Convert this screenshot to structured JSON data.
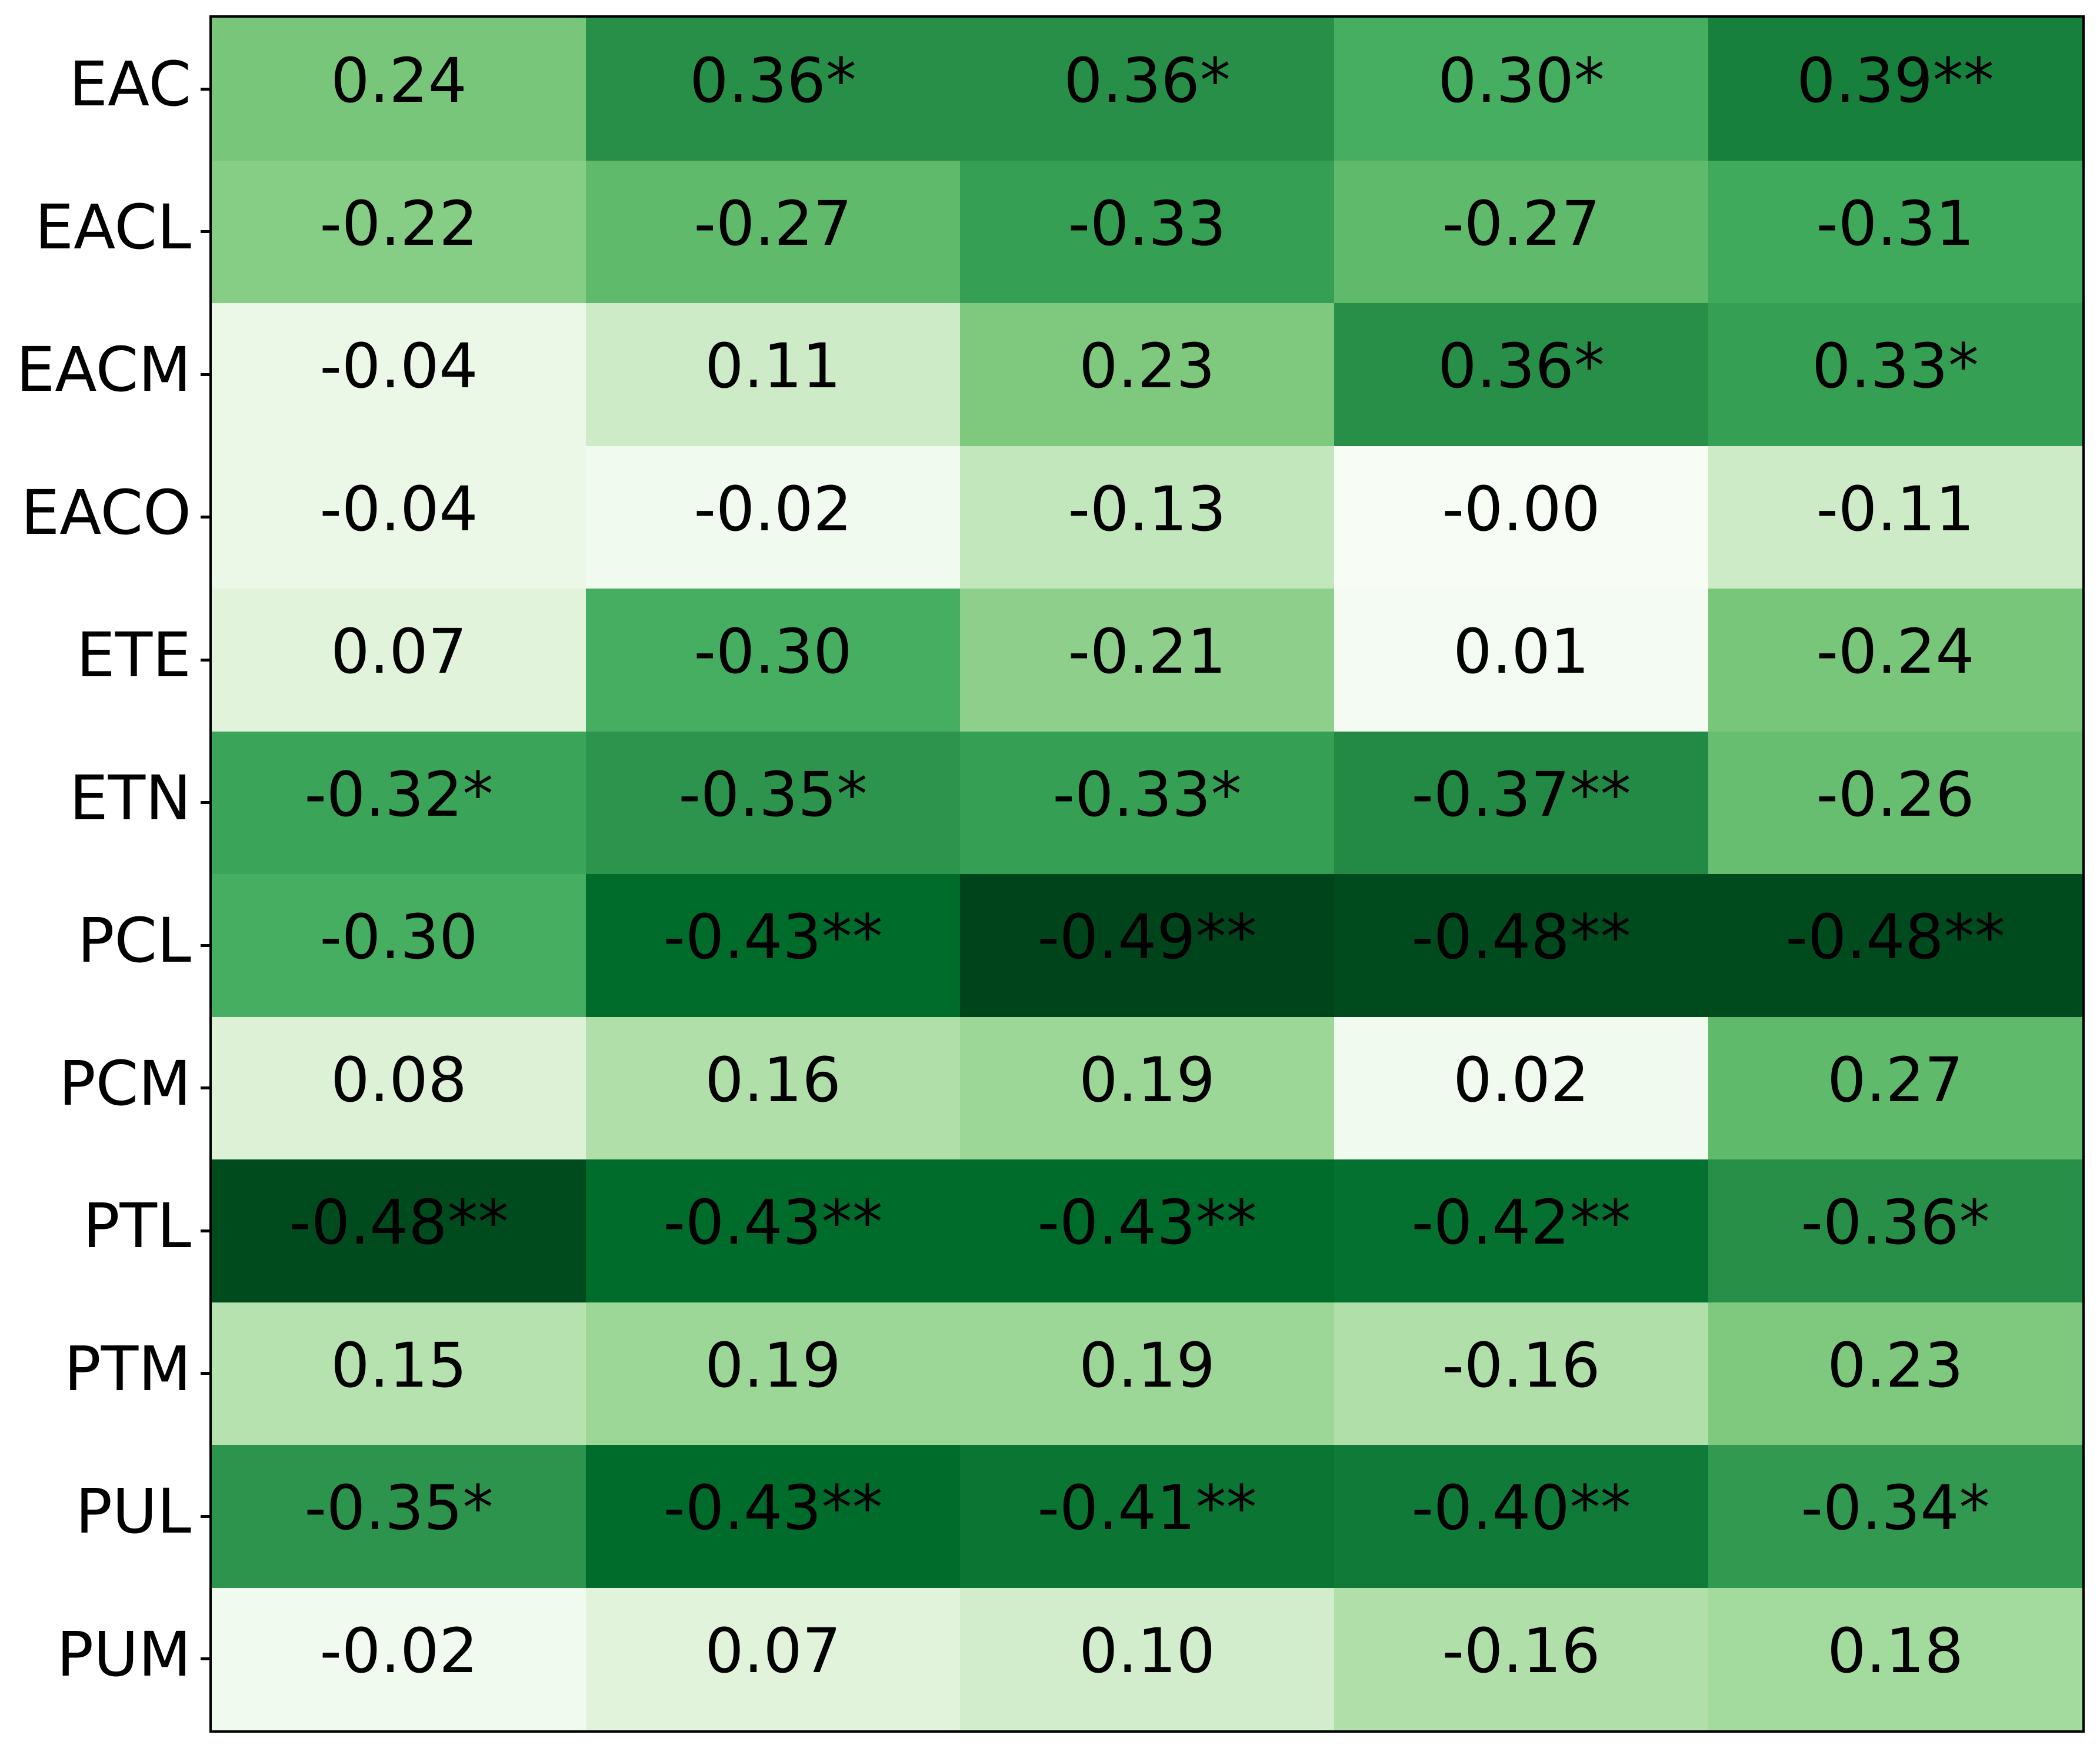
{
  "chart_data": {
    "type": "heatmap",
    "title": "",
    "xlabel": "",
    "ylabel": "",
    "n_rows": 12,
    "n_cols": 5,
    "row_labels": [
      "EAC",
      "EACL",
      "EACM",
      "EACO",
      "ETE",
      "ETN",
      "PCL",
      "PCM",
      "PTL",
      "PTM",
      "PUL",
      "PUM"
    ],
    "column_labels": [],
    "colormap": "Greens",
    "color_encodes": "absolute value of correlation",
    "abs_value_range": [
      0.0,
      0.49
    ],
    "annotation_note": "* and ** suffixes as shown in cells",
    "rows": [
      {
        "label": "EAC",
        "labels": [
          "0.24",
          "0.36*",
          "0.36*",
          "0.30*",
          "0.39**"
        ],
        "values": [
          0.24,
          0.36,
          0.36,
          0.3,
          0.39
        ],
        "colors": [
          "#78c679",
          "#278f48",
          "#278f48",
          "#46ae60",
          "#16803c"
        ]
      },
      {
        "label": "EACL",
        "labels": [
          "-0.22",
          "-0.27",
          "-0.33",
          "-0.27",
          "-0.31"
        ],
        "values": [
          -0.22,
          -0.27,
          -0.33,
          -0.27,
          -0.31
        ],
        "colors": [
          "#86cd85",
          "#5fba6c",
          "#359f54",
          "#5fba6c",
          "#3fa95c"
        ]
      },
      {
        "label": "EACM",
        "labels": [
          "-0.04",
          "0.11",
          "0.23",
          "0.36*",
          "0.33*"
        ],
        "values": [
          -0.04,
          0.11,
          0.23,
          0.36,
          0.33
        ],
        "colors": [
          "#ebf7e7",
          "#cdebc7",
          "#7fc97f",
          "#278f48",
          "#359f54"
        ]
      },
      {
        "label": "EACO",
        "labels": [
          "-0.04",
          "-0.02",
          "-0.13",
          "-0.00",
          "-0.11"
        ],
        "values": [
          -0.04,
          -0.02,
          -0.13,
          -0.0,
          -0.11
        ],
        "colors": [
          "#ebf7e7",
          "#f1faee",
          "#c2e7bc",
          "#f7fcf5",
          "#cdebc7"
        ]
      },
      {
        "label": "ETE",
        "labels": [
          "0.07",
          "-0.30",
          "-0.21",
          "0.01",
          "-0.24"
        ],
        "values": [
          0.07,
          -0.3,
          -0.21,
          0.01,
          -0.24
        ],
        "colors": [
          "#e1f3db",
          "#46ae60",
          "#8ed08b",
          "#f4fbf2",
          "#78c679"
        ]
      },
      {
        "label": "ETN",
        "labels": [
          "-0.32*",
          "-0.35*",
          "-0.33*",
          "-0.37**",
          "-0.26"
        ],
        "values": [
          -0.32,
          -0.35,
          -0.33,
          -0.37,
          -0.26
        ],
        "colors": [
          "#3aa458",
          "#2c944c",
          "#359f54",
          "#228a44",
          "#68be70"
        ]
      },
      {
        "label": "PCL",
        "labels": [
          "-0.30",
          "-0.43**",
          "-0.49**",
          "-0.48**",
          "-0.48**"
        ],
        "values": [
          -0.3,
          -0.43,
          -0.49,
          -0.48,
          -0.48
        ],
        "colors": [
          "#46ae60",
          "#006c2c",
          "#00441b",
          "#004b1e",
          "#004b1e"
        ]
      },
      {
        "label": "PCM",
        "labels": [
          "0.08",
          "0.16",
          "0.19",
          "0.02",
          "0.27"
        ],
        "values": [
          0.08,
          0.16,
          0.19,
          0.02,
          0.27
        ],
        "colors": [
          "#dcf1d6",
          "#b0dfa9",
          "#9cd797",
          "#f1faee",
          "#5fba6c"
        ]
      },
      {
        "label": "PTL",
        "labels": [
          "-0.48**",
          "-0.43**",
          "-0.43**",
          "-0.42**",
          "-0.36*"
        ],
        "values": [
          -0.48,
          -0.43,
          -0.43,
          -0.42,
          -0.36
        ],
        "colors": [
          "#004b1e",
          "#006c2c",
          "#006c2c",
          "#057130",
          "#278f48"
        ]
      },
      {
        "label": "PTM",
        "labels": [
          "0.15",
          "0.19",
          "0.19",
          "-0.16",
          "0.23"
        ],
        "values": [
          0.15,
          0.19,
          0.19,
          -0.16,
          0.23
        ],
        "colors": [
          "#b6e2af",
          "#9cd797",
          "#9cd797",
          "#b0dfa9",
          "#7fc97f"
        ]
      },
      {
        "label": "PUL",
        "labels": [
          "-0.35*",
          "-0.43**",
          "-0.41**",
          "-0.40**",
          "-0.34*"
        ],
        "values": [
          -0.35,
          -0.43,
          -0.41,
          -0.4,
          -0.34
        ],
        "colors": [
          "#2c944c",
          "#006c2c",
          "#0b7634",
          "#107b38",
          "#319950"
        ]
      },
      {
        "label": "PUM",
        "labels": [
          "-0.02",
          "0.07",
          "0.10",
          "-0.16",
          "0.18"
        ],
        "values": [
          -0.02,
          0.07,
          0.1,
          -0.16,
          0.18
        ],
        "colors": [
          "#f1faee",
          "#e1f3db",
          "#d2edcc",
          "#b0dfa9",
          "#a3da9d"
        ]
      }
    ]
  }
}
